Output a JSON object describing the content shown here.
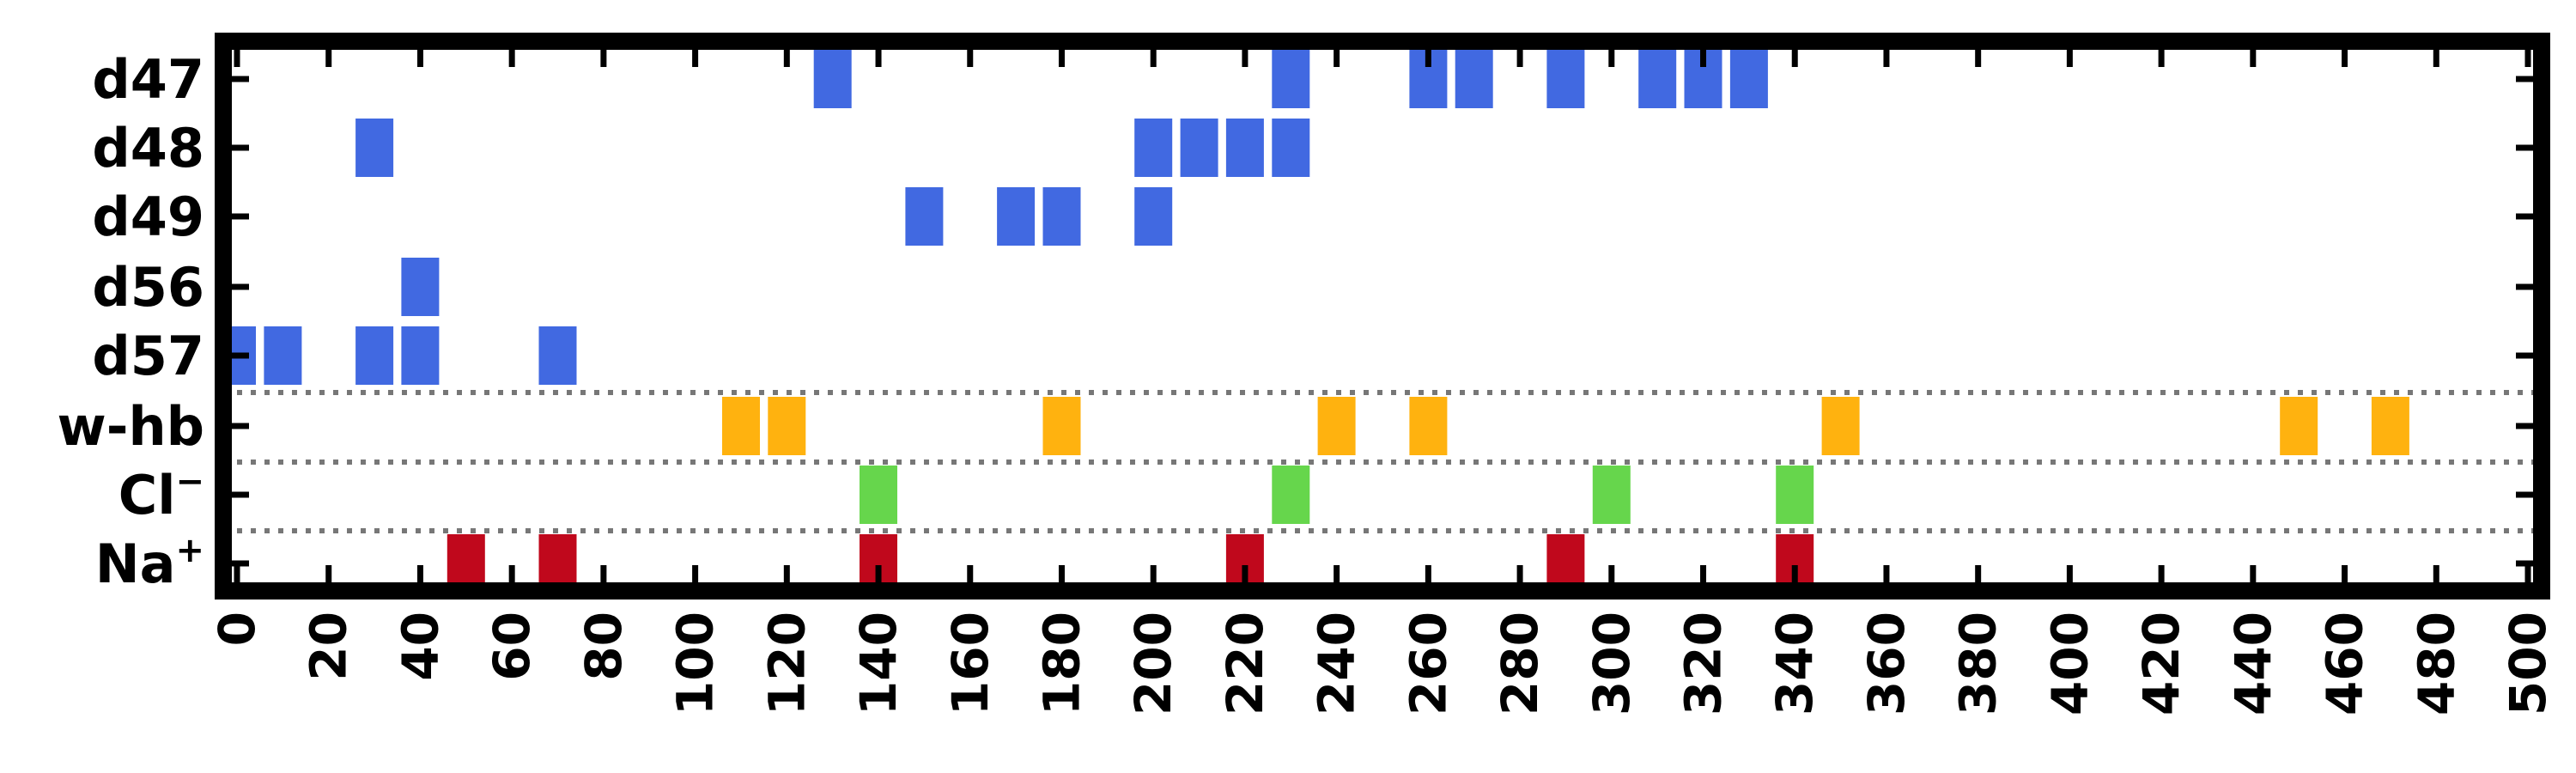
{
  "chart_data": {
    "type": "event-raster",
    "title": "",
    "xlabel": "",
    "ylabel": "",
    "xlim": [
      -3,
      503
    ],
    "x_ticks": [
      0,
      20,
      40,
      60,
      80,
      100,
      120,
      140,
      160,
      180,
      200,
      220,
      240,
      260,
      280,
      300,
      320,
      340,
      360,
      380,
      400,
      420,
      440,
      460,
      480,
      500
    ],
    "x_tick_labels": [
      "0",
      "20",
      "40",
      "60",
      "80",
      "100",
      "120",
      "140",
      "160",
      "180",
      "200",
      "220",
      "240",
      "260",
      "280",
      "300",
      "320",
      "340",
      "360",
      "380",
      "400",
      "420",
      "440",
      "460",
      "480",
      "500"
    ],
    "grid": false,
    "legend": "none",
    "separators_after_rows": [
      "d57",
      "w-hb",
      "Cl-"
    ],
    "rows": [
      {
        "key": "d47",
        "label": "d47",
        "sup": "",
        "color": "#4169e1",
        "x": [
          130,
          230,
          260,
          270,
          290,
          310,
          320,
          330
        ]
      },
      {
        "key": "d48",
        "label": "d48",
        "sup": "",
        "color": "#4169e1",
        "x": [
          30,
          200,
          210,
          220,
          230
        ]
      },
      {
        "key": "d49",
        "label": "d49",
        "sup": "",
        "color": "#4169e1",
        "x": [
          150,
          170,
          180,
          200
        ]
      },
      {
        "key": "d56",
        "label": "d56",
        "sup": "",
        "color": "#4169e1",
        "x": [
          40
        ]
      },
      {
        "key": "d57",
        "label": "d57",
        "sup": "",
        "color": "#4169e1",
        "x": [
          0,
          10,
          30,
          40,
          70
        ]
      },
      {
        "key": "w-hb",
        "label": "w-hb",
        "sup": "",
        "color": "#ffb20f",
        "x": [
          110,
          120,
          180,
          240,
          260,
          350,
          450,
          470
        ]
      },
      {
        "key": "Cl-",
        "label": "Cl",
        "sup": "−",
        "color": "#66d64c",
        "x": [
          140,
          230,
          300,
          340
        ]
      },
      {
        "key": "Na+",
        "label": "Na",
        "sup": "+",
        "color": "#c0081c",
        "x": [
          50,
          70,
          140,
          220,
          290,
          340
        ]
      }
    ]
  }
}
